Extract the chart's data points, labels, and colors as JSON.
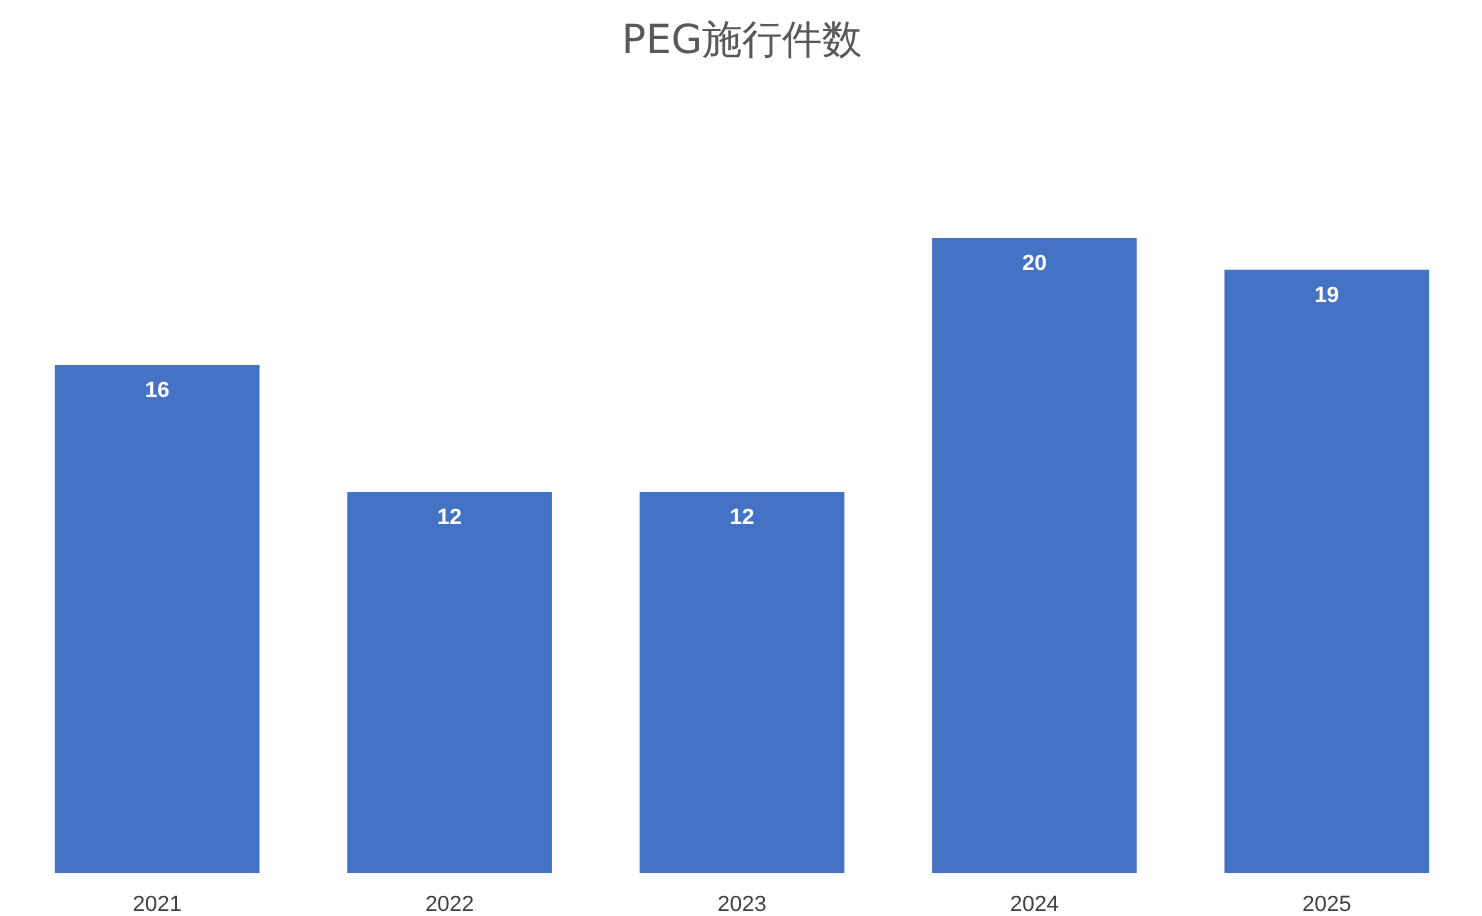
{
  "chart_data": {
    "type": "bar",
    "title": "PEG施行件数",
    "categories": [
      "2021",
      "2022",
      "2023",
      "2024",
      "2025"
    ],
    "values": [
      16,
      12,
      12,
      20,
      19
    ],
    "color": "#4472c4",
    "data_labels": true,
    "grid": false,
    "tick_labels": "x"
  }
}
